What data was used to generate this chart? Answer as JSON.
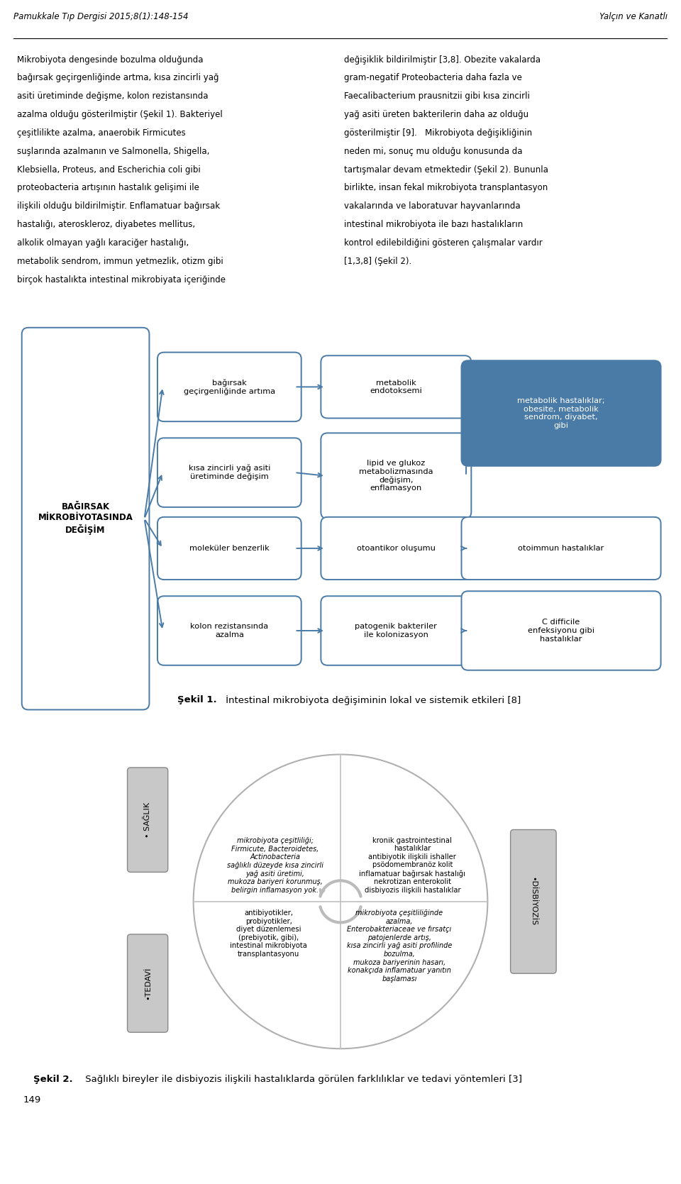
{
  "header_left": "Pamukkale Tıp Dergisi 2015;8(1):148-154",
  "header_right": "Yalçın ve Kanatlı",
  "col1_text": "Mikrobiyota dengesinde bozulma olduğunda bağırsak geçirgenliğinde artma, kısa zincirli yağ asiti üretiminde değişme, kolon rezistansında azalma olduğu gösterilmiştir (Şekil 1). Bakteriyel çeşitlilikte azalma, anaerobik Firmicutes suşlarında azalmanın ve Salmonella, Shigella, Klebsiella, Proteus, and Escherichia coli gibi proteobacteria artışının hastalık gelişimi ile ilişkili olduğu bildirilmiştir. Enflamatuar bağırsak hastalığı, ateroskleroz, diyabetes mellitus, alkolik olmayan yağlı karaciğer hastalığı, metabolik sendrom, immun yetmezlik, otizm gibi birçok hastalıkta intestinal mikrobiyata içeriğinde",
  "col2_text": "değişiklik bildirilmiştir [3,8]. Obezite vakalarda gram-negatif Proteobacteria daha fazla ve Faecalibacterium prausnitzii gibi kısa zincirli yağ asiti üreten bakterilerin daha az olduğu gösterilmiştir [9].   Mikrobiyota değişikliğinin neden mi, sonuç mu olduğu konusunda da tartışmalar devam etmektedir (Şekil 2). Bununla birlikte, insan fekal mikrobiyota transplantasyon vakalarında ve laboratuvar hayvanlarında intestinal mikrobiyota ile bazı hastalıkların kontrol edilebildiğini gösteren çalışmalar vardır [1,3,8] (Şekil 2).",
  "fig1_caption_bold": "Şekil 1.",
  "fig1_caption_rest": " İntestinal mikrobiyota değişiminin lokal ve sistemik etkileri [8]",
  "fig2_caption_bold": "Şekil 2.",
  "fig2_caption_rest": " Sağlıklı bireyler ile disbiyozis ilişkili hastalıklarda görülen farklılıklar ve tedavi yöntemleri [3]",
  "page_number": "149",
  "box_left": "BAĞIRSAK\nMİKROBİYOTASINDA\nDEĞİŞİM",
  "col2_boxes": [
    "bağırsak\ngeçirgenliğinde artıma",
    "kısa zincirli yağ asiti\nüretiminde değişim",
    "moleküler benzerlik",
    "kolon rezistansında\nazalma"
  ],
  "col3_boxes": [
    "metabolik\nendotoksemi",
    "lipid ve glukoz\nmetabolizmasında\ndeğişim,\nenflamasyon",
    "otoantikor oluşumu",
    "patogenik bakteriler\nile kolonizasyon"
  ],
  "col4_boxes": [
    "metabolik hastalıklar;\nobesite, metabolik\nsendrom, diyabet,\ngibi",
    "otoimmun hastalıklar",
    "C difficile\nenfeksiyonu gibi\nhastalıklar"
  ],
  "blue": "#4a7ba7",
  "circle_top_left_text": "mikrobiyota çeşitliliği;\nFirmicute, Bacteroidetes,\nActinobacteria\nsağlıklı düzeyde kısa zincirli\nyağ asiti üretimi,\nmukoza bariyeri korunmuş,\nbelirgin inflamasyon yok.",
  "circle_top_right_text": "kronik gastrointestinal\nhastalıklar\nantibiyotik ilişkili ishaller\npsödomembranöz kolit\ninflamatuar bağırsak hastalığı\nnekrotizan enterokolit\ndisbiyozis ilişkili hastalıklar",
  "circle_bottom_left_text": "antibiyotikler,\nprobiyotikler,\ndiyet düzenlemesi\n(prebiyotik, gibi),\nintestinal mikrobiyota\ntransplantasyonu",
  "circle_bottom_right_text": "mikrobiyota çeşitliliğinde\nazalma,\nEnterobakteriaceae ve fırsatçı\npatojenlerde artış,\nkısa zincirli yağ asiti profilinde\nbozulma,\nmukoza bariyerinin hasarı,\nkonakçıda inflamatuar yanıtın\nbaşlaması",
  "saglik_label": "• SAĞLIK",
  "disbiyozis_label": "•DİSBİYOZİS",
  "tedavi_label": "•TEDAVİ"
}
